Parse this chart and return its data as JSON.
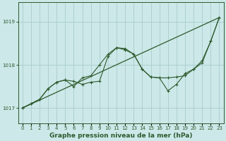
{
  "title": "Graphe pression niveau de la mer (hPa)",
  "bg_color": "#cce8e8",
  "grid_color": "#aacccc",
  "line_color": "#2d5a2d",
  "xlim": [
    -0.5,
    23.5
  ],
  "ylim": [
    1016.65,
    1019.45
  ],
  "yticks": [
    1017,
    1018,
    1019
  ],
  "ylabel_fontsize": 6,
  "xlabel_fontsize": 6.5,
  "tick_fontsize": 5,
  "series_trend_x": [
    0,
    23
  ],
  "series_trend_y": [
    1017.0,
    1019.1
  ],
  "series_main_x": [
    0,
    1,
    2,
    3,
    4,
    5,
    6,
    7,
    8,
    9,
    10,
    11,
    12,
    13,
    14,
    15,
    16,
    17,
    18,
    19,
    20,
    21,
    22,
    23
  ],
  "series_main_y": [
    1017.0,
    1017.1,
    1017.2,
    1017.45,
    1017.6,
    1017.65,
    1017.62,
    1017.55,
    1017.6,
    1017.62,
    1018.2,
    1018.4,
    1018.35,
    1018.25,
    1017.9,
    1017.72,
    1017.7,
    1017.7,
    1017.72,
    1017.75,
    1017.9,
    1018.05,
    1018.55,
    1019.1
  ],
  "series_alt_x": [
    0,
    1,
    2,
    3,
    4,
    5,
    6,
    7,
    8,
    9,
    10,
    11,
    12,
    13,
    14,
    15,
    16,
    17,
    18,
    19,
    20,
    21,
    22,
    23
  ],
  "series_alt_y": [
    1017.0,
    1017.1,
    1017.2,
    1017.45,
    1017.6,
    1017.65,
    1017.5,
    1017.7,
    1017.75,
    1018.0,
    1018.25,
    1018.4,
    1018.38,
    1018.25,
    1017.9,
    1017.72,
    1017.7,
    1017.4,
    1017.55,
    1017.8,
    1017.9,
    1018.1,
    1018.55,
    1019.1
  ]
}
